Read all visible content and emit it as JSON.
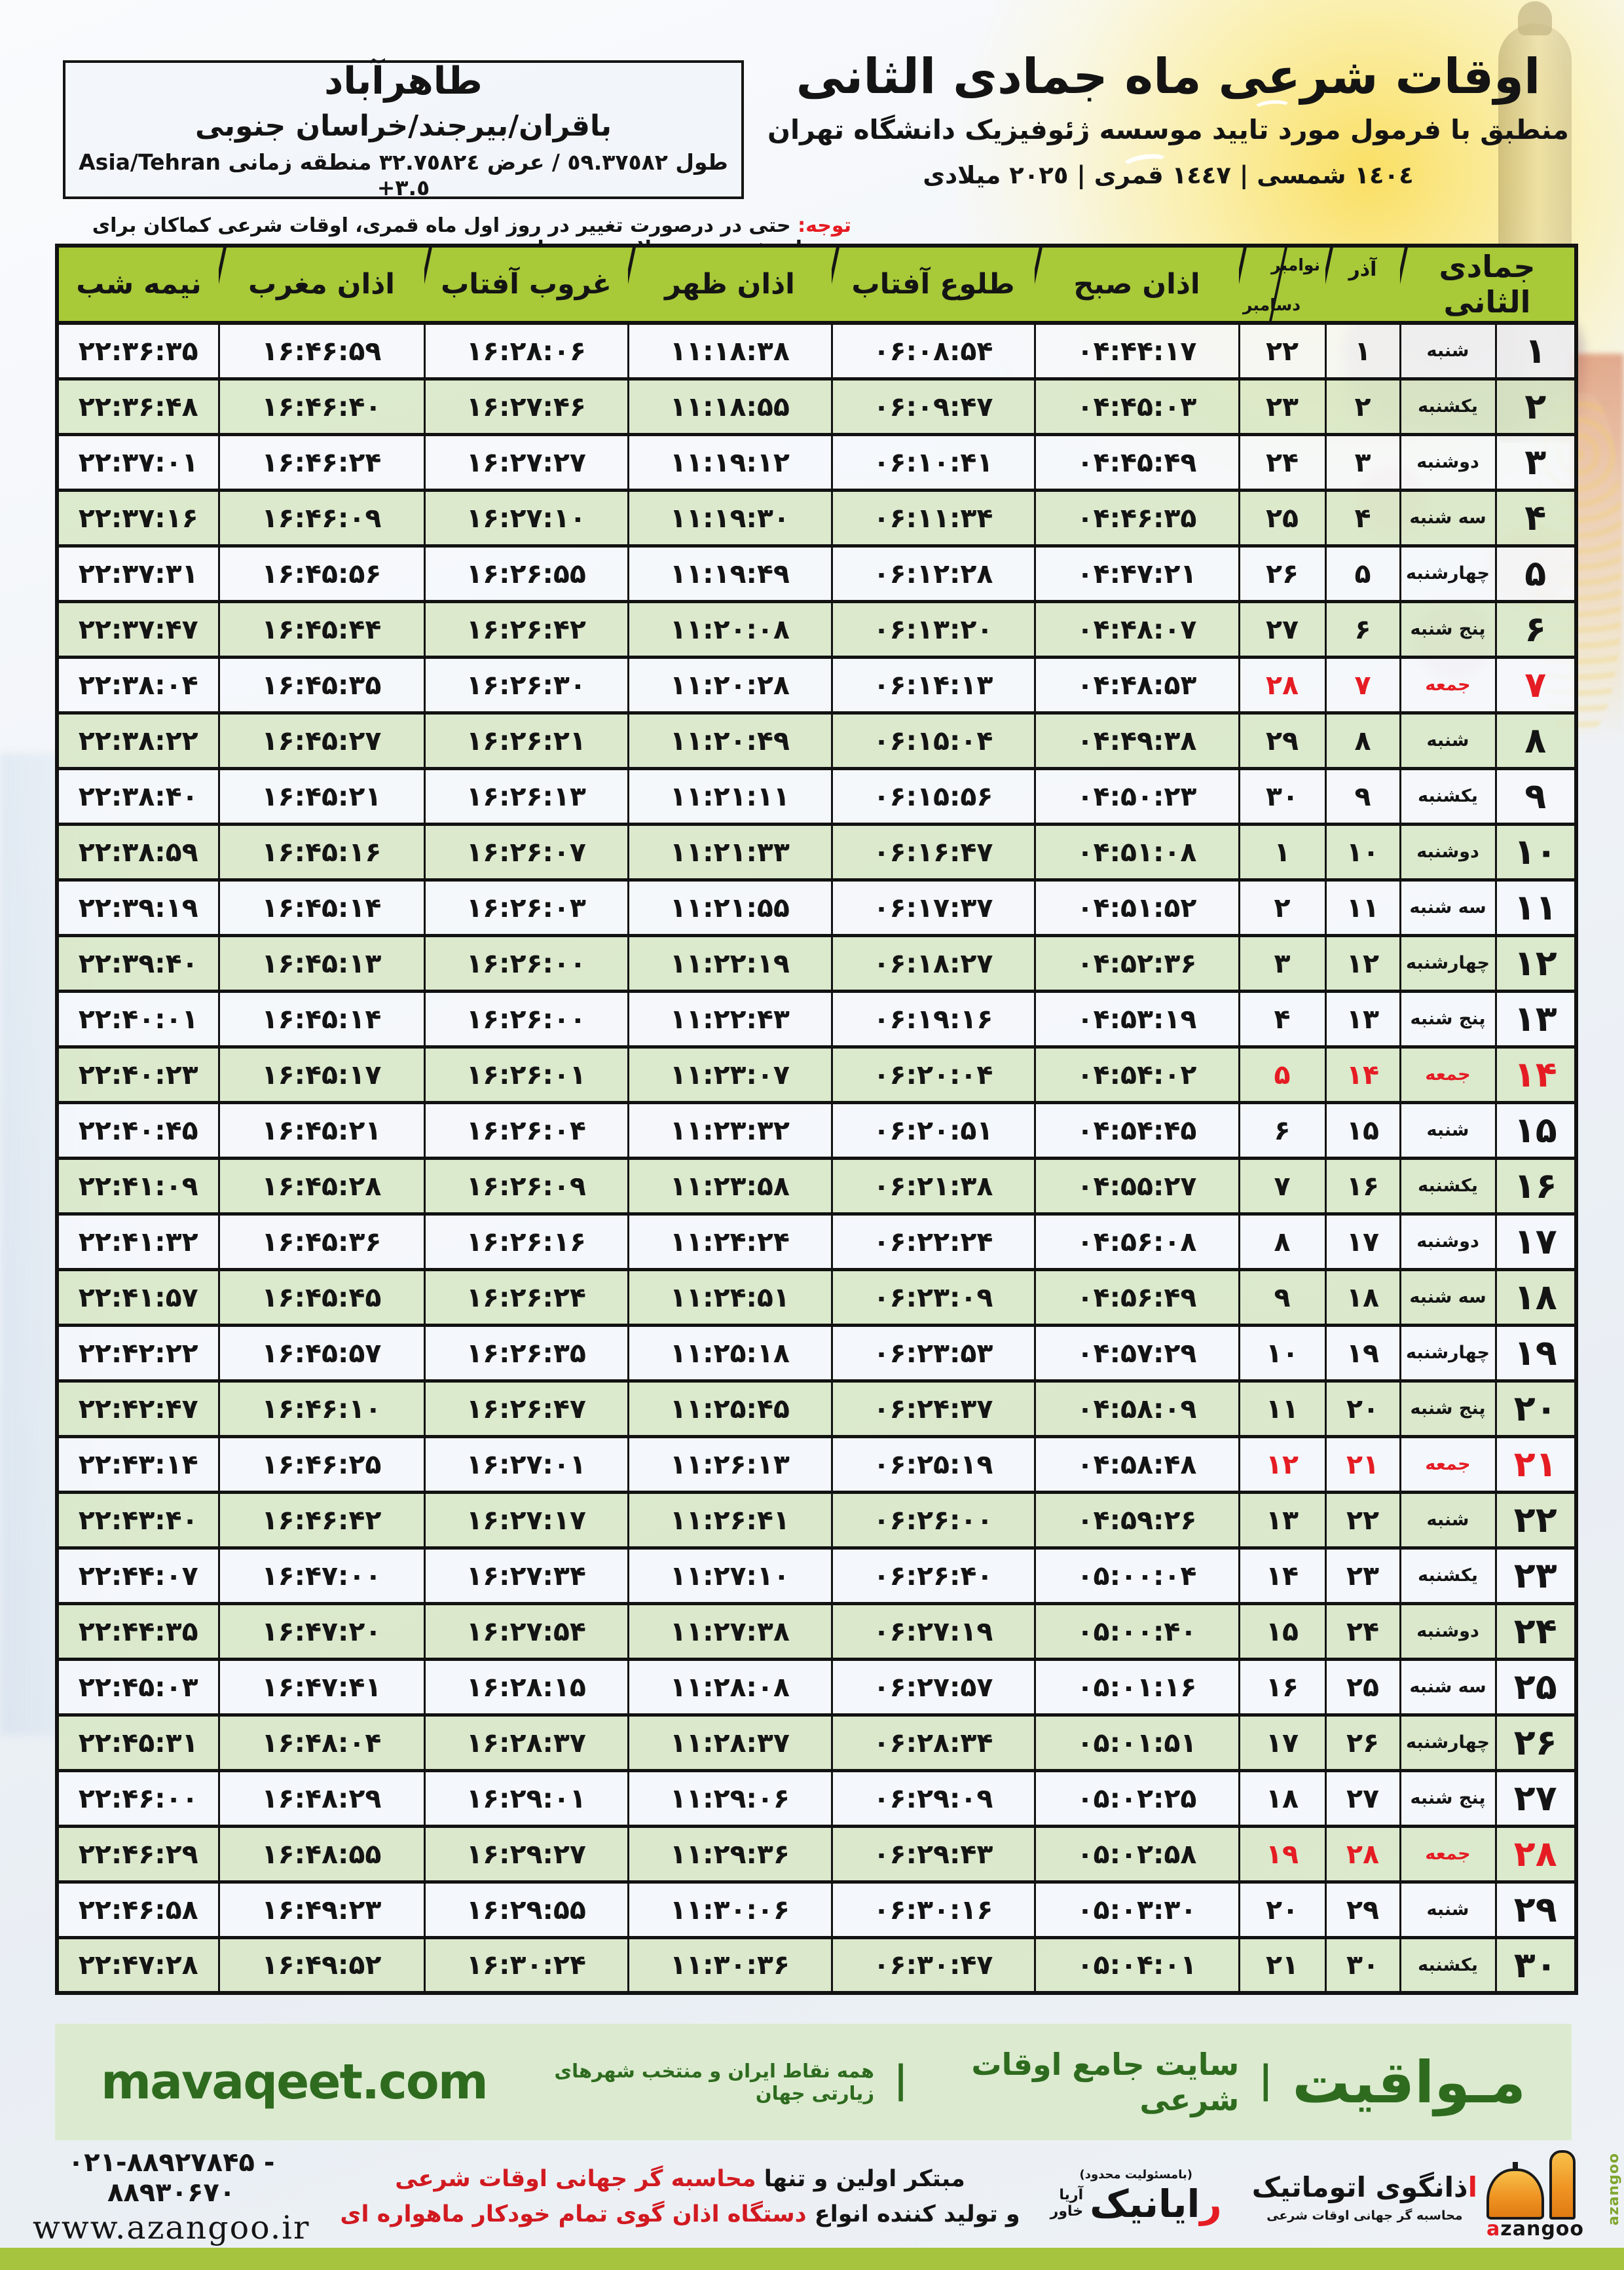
{
  "title": {
    "main": "اوقات شرعی ماه جمادی الثانی",
    "subtitle": "منطبق با فرمول مورد تایید موسسه ژئوفیزیک دانشگاه تهران",
    "years": "١٤٠٤ شمسی | ١٤٤٧ قمری | ٢٠٢٥ میلادی"
  },
  "location": {
    "name": "طاهرآباد",
    "region": "باقران/بیرجند/خراسان جنوبی",
    "coords_fa": "طول ٥٩.٣٧٥٨٢ / عرض ٣٢.٧٥٨٢٤ منطقه زمانی",
    "coords_latin": "Asia/Tehran +٣.٥"
  },
  "notice": {
    "label": "توجه:",
    "text": " حتی در درصورت تغییر در روز اول ماه قمری، اوقات شرعی کماکان برای روزهای شمسی و میلادی معتبر است."
  },
  "table": {
    "headers": {
      "month": "جمادی الثانی",
      "azar": "آذر",
      "greg_top": "نوامبر",
      "greg_bottom": "دسامبر",
      "fajr": "اذان صبح",
      "sunrise": "طلوع آفتاب",
      "dhuhr": "اذان ظهر",
      "sunset": "غروب آفتاب",
      "maghrib": "اذان مغرب",
      "midnight": "نیمه شب"
    },
    "rows": [
      {
        "d": "۱",
        "w": "شنبه",
        "a": "۱",
        "g": "۲۲",
        "sobh": "۰۴:۴۴:۱۷",
        "tolu": "۰۶:۰۸:۵۴",
        "zohr": "۱۱:۱۸:۳۸",
        "ghorub": "۱۶:۲۸:۰۶",
        "maghreb": "۱۶:۴۶:۵۹",
        "nime": "۲۲:۳۶:۳۵",
        "f": 0
      },
      {
        "d": "۲",
        "w": "یکشنبه",
        "a": "۲",
        "g": "۲۳",
        "sobh": "۰۴:۴۵:۰۳",
        "tolu": "۰۶:۰۹:۴۷",
        "zohr": "۱۱:۱۸:۵۵",
        "ghorub": "۱۶:۲۷:۴۶",
        "maghreb": "۱۶:۴۶:۴۰",
        "nime": "۲۲:۳۶:۴۸",
        "f": 0
      },
      {
        "d": "۳",
        "w": "دوشنبه",
        "a": "۳",
        "g": "۲۴",
        "sobh": "۰۴:۴۵:۴۹",
        "tolu": "۰۶:۱۰:۴۱",
        "zohr": "۱۱:۱۹:۱۲",
        "ghorub": "۱۶:۲۷:۲۷",
        "maghreb": "۱۶:۴۶:۲۴",
        "nime": "۲۲:۳۷:۰۱",
        "f": 0
      },
      {
        "d": "۴",
        "w": "سه شنبه",
        "a": "۴",
        "g": "۲۵",
        "sobh": "۰۴:۴۶:۳۵",
        "tolu": "۰۶:۱۱:۳۴",
        "zohr": "۱۱:۱۹:۳۰",
        "ghorub": "۱۶:۲۷:۱۰",
        "maghreb": "۱۶:۴۶:۰۹",
        "nime": "۲۲:۳۷:۱۶",
        "f": 0
      },
      {
        "d": "۵",
        "w": "چهارشنبه",
        "a": "۵",
        "g": "۲۶",
        "sobh": "۰۴:۴۷:۲۱",
        "tolu": "۰۶:۱۲:۲۸",
        "zohr": "۱۱:۱۹:۴۹",
        "ghorub": "۱۶:۲۶:۵۵",
        "maghreb": "۱۶:۴۵:۵۶",
        "nime": "۲۲:۳۷:۳۱",
        "f": 0
      },
      {
        "d": "۶",
        "w": "پنج شنبه",
        "a": "۶",
        "g": "۲۷",
        "sobh": "۰۴:۴۸:۰۷",
        "tolu": "۰۶:۱۳:۲۰",
        "zohr": "۱۱:۲۰:۰۸",
        "ghorub": "۱۶:۲۶:۴۲",
        "maghreb": "۱۶:۴۵:۴۴",
        "nime": "۲۲:۳۷:۴۷",
        "f": 0
      },
      {
        "d": "۷",
        "w": "جمعه",
        "a": "۷",
        "g": "۲۸",
        "sobh": "۰۴:۴۸:۵۳",
        "tolu": "۰۶:۱۴:۱۳",
        "zohr": "۱۱:۲۰:۲۸",
        "ghorub": "۱۶:۲۶:۳۰",
        "maghreb": "۱۶:۴۵:۳۵",
        "nime": "۲۲:۳۸:۰۴",
        "f": 1
      },
      {
        "d": "۸",
        "w": "شنبه",
        "a": "۸",
        "g": "۲۹",
        "sobh": "۰۴:۴۹:۳۸",
        "tolu": "۰۶:۱۵:۰۴",
        "zohr": "۱۱:۲۰:۴۹",
        "ghorub": "۱۶:۲۶:۲۱",
        "maghreb": "۱۶:۴۵:۲۷",
        "nime": "۲۲:۳۸:۲۲",
        "f": 0
      },
      {
        "d": "۹",
        "w": "یکشنبه",
        "a": "۹",
        "g": "۳۰",
        "sobh": "۰۴:۵۰:۲۳",
        "tolu": "۰۶:۱۵:۵۶",
        "zohr": "۱۱:۲۱:۱۱",
        "ghorub": "۱۶:۲۶:۱۳",
        "maghreb": "۱۶:۴۵:۲۱",
        "nime": "۲۲:۳۸:۴۰",
        "f": 0
      },
      {
        "d": "۱۰",
        "w": "دوشنبه",
        "a": "۱۰",
        "g": "۱",
        "sobh": "۰۴:۵۱:۰۸",
        "tolu": "۰۶:۱۶:۴۷",
        "zohr": "۱۱:۲۱:۳۳",
        "ghorub": "۱۶:۲۶:۰۷",
        "maghreb": "۱۶:۴۵:۱۶",
        "nime": "۲۲:۳۸:۵۹",
        "f": 0
      },
      {
        "d": "۱۱",
        "w": "سه شنبه",
        "a": "۱۱",
        "g": "۲",
        "sobh": "۰۴:۵۱:۵۲",
        "tolu": "۰۶:۱۷:۳۷",
        "zohr": "۱۱:۲۱:۵۵",
        "ghorub": "۱۶:۲۶:۰۳",
        "maghreb": "۱۶:۴۵:۱۴",
        "nime": "۲۲:۳۹:۱۹",
        "f": 0
      },
      {
        "d": "۱۲",
        "w": "چهارشنبه",
        "a": "۱۲",
        "g": "۳",
        "sobh": "۰۴:۵۲:۳۶",
        "tolu": "۰۶:۱۸:۲۷",
        "zohr": "۱۱:۲۲:۱۹",
        "ghorub": "۱۶:۲۶:۰۰",
        "maghreb": "۱۶:۴۵:۱۳",
        "nime": "۲۲:۳۹:۴۰",
        "f": 0
      },
      {
        "d": "۱۳",
        "w": "پنج شنبه",
        "a": "۱۳",
        "g": "۴",
        "sobh": "۰۴:۵۳:۱۹",
        "tolu": "۰۶:۱۹:۱۶",
        "zohr": "۱۱:۲۲:۴۳",
        "ghorub": "۱۶:۲۶:۰۰",
        "maghreb": "۱۶:۴۵:۱۴",
        "nime": "۲۲:۴۰:۰۱",
        "f": 0
      },
      {
        "d": "۱۴",
        "w": "جمعه",
        "a": "۱۴",
        "g": "۵",
        "sobh": "۰۴:۵۴:۰۲",
        "tolu": "۰۶:۲۰:۰۴",
        "zohr": "۱۱:۲۳:۰۷",
        "ghorub": "۱۶:۲۶:۰۱",
        "maghreb": "۱۶:۴۵:۱۷",
        "nime": "۲۲:۴۰:۲۳",
        "f": 1
      },
      {
        "d": "۱۵",
        "w": "شنبه",
        "a": "۱۵",
        "g": "۶",
        "sobh": "۰۴:۵۴:۴۵",
        "tolu": "۰۶:۲۰:۵۱",
        "zohr": "۱۱:۲۳:۳۲",
        "ghorub": "۱۶:۲۶:۰۴",
        "maghreb": "۱۶:۴۵:۲۱",
        "nime": "۲۲:۴۰:۴۵",
        "f": 0
      },
      {
        "d": "۱۶",
        "w": "یکشنبه",
        "a": "۱۶",
        "g": "۷",
        "sobh": "۰۴:۵۵:۲۷",
        "tolu": "۰۶:۲۱:۳۸",
        "zohr": "۱۱:۲۳:۵۸",
        "ghorub": "۱۶:۲۶:۰۹",
        "maghreb": "۱۶:۴۵:۲۸",
        "nime": "۲۲:۴۱:۰۹",
        "f": 0
      },
      {
        "d": "۱۷",
        "w": "دوشنبه",
        "a": "۱۷",
        "g": "۸",
        "sobh": "۰۴:۵۶:۰۸",
        "tolu": "۰۶:۲۲:۲۴",
        "zohr": "۱۱:۲۴:۲۴",
        "ghorub": "۱۶:۲۶:۱۶",
        "maghreb": "۱۶:۴۵:۳۶",
        "nime": "۲۲:۴۱:۳۲",
        "f": 0
      },
      {
        "d": "۱۸",
        "w": "سه شنبه",
        "a": "۱۸",
        "g": "۹",
        "sobh": "۰۴:۵۶:۴۹",
        "tolu": "۰۶:۲۳:۰۹",
        "zohr": "۱۱:۲۴:۵۱",
        "ghorub": "۱۶:۲۶:۲۴",
        "maghreb": "۱۶:۴۵:۴۵",
        "nime": "۲۲:۴۱:۵۷",
        "f": 0
      },
      {
        "d": "۱۹",
        "w": "چهارشنبه",
        "a": "۱۹",
        "g": "۱۰",
        "sobh": "۰۴:۵۷:۲۹",
        "tolu": "۰۶:۲۳:۵۳",
        "zohr": "۱۱:۲۵:۱۸",
        "ghorub": "۱۶:۲۶:۳۵",
        "maghreb": "۱۶:۴۵:۵۷",
        "nime": "۲۲:۴۲:۲۲",
        "f": 0
      },
      {
        "d": "۲۰",
        "w": "پنج شنبه",
        "a": "۲۰",
        "g": "۱۱",
        "sobh": "۰۴:۵۸:۰۹",
        "tolu": "۰۶:۲۴:۳۷",
        "zohr": "۱۱:۲۵:۴۵",
        "ghorub": "۱۶:۲۶:۴۷",
        "maghreb": "۱۶:۴۶:۱۰",
        "nime": "۲۲:۴۲:۴۷",
        "f": 0
      },
      {
        "d": "۲۱",
        "w": "جمعه",
        "a": "۲۱",
        "g": "۱۲",
        "sobh": "۰۴:۵۸:۴۸",
        "tolu": "۰۶:۲۵:۱۹",
        "zohr": "۱۱:۲۶:۱۳",
        "ghorub": "۱۶:۲۷:۰۱",
        "maghreb": "۱۶:۴۶:۲۵",
        "nime": "۲۲:۴۳:۱۴",
        "f": 1
      },
      {
        "d": "۲۲",
        "w": "شنبه",
        "a": "۲۲",
        "g": "۱۳",
        "sobh": "۰۴:۵۹:۲۶",
        "tolu": "۰۶:۲۶:۰۰",
        "zohr": "۱۱:۲۶:۴۱",
        "ghorub": "۱۶:۲۷:۱۷",
        "maghreb": "۱۶:۴۶:۴۲",
        "nime": "۲۲:۴۳:۴۰",
        "f": 0
      },
      {
        "d": "۲۳",
        "w": "یکشنبه",
        "a": "۲۳",
        "g": "۱۴",
        "sobh": "۰۵:۰۰:۰۴",
        "tolu": "۰۶:۲۶:۴۰",
        "zohr": "۱۱:۲۷:۱۰",
        "ghorub": "۱۶:۲۷:۳۴",
        "maghreb": "۱۶:۴۷:۰۰",
        "nime": "۲۲:۴۴:۰۷",
        "f": 0
      },
      {
        "d": "۲۴",
        "w": "دوشنبه",
        "a": "۲۴",
        "g": "۱۵",
        "sobh": "۰۵:۰۰:۴۰",
        "tolu": "۰۶:۲۷:۱۹",
        "zohr": "۱۱:۲۷:۳۸",
        "ghorub": "۱۶:۲۷:۵۴",
        "maghreb": "۱۶:۴۷:۲۰",
        "nime": "۲۲:۴۴:۳۵",
        "f": 0
      },
      {
        "d": "۲۵",
        "w": "سه شنبه",
        "a": "۲۵",
        "g": "۱۶",
        "sobh": "۰۵:۰۱:۱۶",
        "tolu": "۰۶:۲۷:۵۷",
        "zohr": "۱۱:۲۸:۰۸",
        "ghorub": "۱۶:۲۸:۱۵",
        "maghreb": "۱۶:۴۷:۴۱",
        "nime": "۲۲:۴۵:۰۳",
        "f": 0
      },
      {
        "d": "۲۶",
        "w": "چهارشنبه",
        "a": "۲۶",
        "g": "۱۷",
        "sobh": "۰۵:۰۱:۵۱",
        "tolu": "۰۶:۲۸:۳۴",
        "zohr": "۱۱:۲۸:۳۷",
        "ghorub": "۱۶:۲۸:۳۷",
        "maghreb": "۱۶:۴۸:۰۴",
        "nime": "۲۲:۴۵:۳۱",
        "f": 0
      },
      {
        "d": "۲۷",
        "w": "پنج شنبه",
        "a": "۲۷",
        "g": "۱۸",
        "sobh": "۰۵:۰۲:۲۵",
        "tolu": "۰۶:۲۹:۰۹",
        "zohr": "۱۱:۲۹:۰۶",
        "ghorub": "۱۶:۲۹:۰۱",
        "maghreb": "۱۶:۴۸:۲۹",
        "nime": "۲۲:۴۶:۰۰",
        "f": 0
      },
      {
        "d": "۲۸",
        "w": "جمعه",
        "a": "۲۸",
        "g": "۱۹",
        "sobh": "۰۵:۰۲:۵۸",
        "tolu": "۰۶:۲۹:۴۳",
        "zohr": "۱۱:۲۹:۳۶",
        "ghorub": "۱۶:۲۹:۲۷",
        "maghreb": "۱۶:۴۸:۵۵",
        "nime": "۲۲:۴۶:۲۹",
        "f": 1
      },
      {
        "d": "۲۹",
        "w": "شنبه",
        "a": "۲۹",
        "g": "۲۰",
        "sobh": "۰۵:۰۳:۳۰",
        "tolu": "۰۶:۳۰:۱۶",
        "zohr": "۱۱:۳۰:۰۶",
        "ghorub": "۱۶:۲۹:۵۵",
        "maghreb": "۱۶:۴۹:۲۳",
        "nime": "۲۲:۴۶:۵۸",
        "f": 0
      },
      {
        "d": "۳۰",
        "w": "یکشنبه",
        "a": "۳۰",
        "g": "۲۱",
        "sobh": "۰۵:۰۴:۰۱",
        "tolu": "۰۶:۳۰:۴۷",
        "zohr": "۱۱:۳۰:۳۶",
        "ghorub": "۱۶:۳۰:۲۴",
        "maghreb": "۱۶:۴۹:۵۲",
        "nime": "۲۲:۴۷:۲۸",
        "f": 0
      }
    ]
  },
  "banner": {
    "brand": "مـواقیت",
    "sep": "|",
    "site_label": "سایت جامع اوقات شرعی",
    "desc": "همه نقاط ایران و منتخب شهرهای زیارتی جهان",
    "url": "mavaqeet.com"
  },
  "footer": {
    "slogan1_black": "مبتکر اولین و تنها ",
    "slogan1_red": "محاسبه گر جهانی اوقات شرعی",
    "slogan2_black": "و تولید کننده انواع ",
    "slogan2_red": "دستگاه اذان گوی تمام خودکار ماهواره ای",
    "phone": "۰۲۱-۸۸۹۲۷۸۴۵ - ۸۸۹۳۰۶۷۰",
    "site": "www.azangoo.ir",
    "rayanik_note": "(بامسئولیت محدود)",
    "rayanik_first": "ر",
    "rayanik_rest": "ایانیک",
    "rayanik_sub1": "آریا",
    "rayanik_sub2": "خاور",
    "az_fa_first": "ا",
    "az_fa_rest": "ذانگوی اتوماتیک",
    "az_sub": "محاسبه گر جهانی اوقات شرعی",
    "az_en_a": "a",
    "az_en_rest": "zangoo",
    "az_vertical": "azangoo"
  },
  "colors": {
    "header_green": "#a8c938",
    "row_green": "#d8e7c6",
    "row_light": "#f5f8fb",
    "friday_red": "#e51c23",
    "banner_bg": "#dcebcf",
    "banner_text": "#2e6b1f",
    "bottom_bar_green": "#a6c43e",
    "logo_orange": "#ef9423"
  }
}
